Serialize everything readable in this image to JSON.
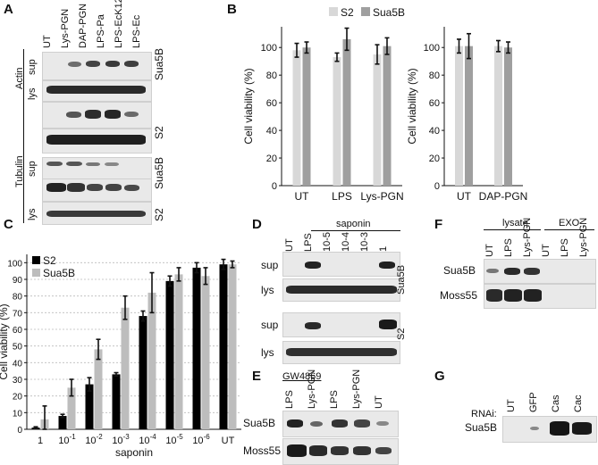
{
  "panels": {
    "A": {
      "label": "A",
      "lanes": [
        "UT",
        "Lys-PGN",
        "DAP-PGN",
        "LPS-Pa",
        "LPS-EcK12",
        "LPS-Ec"
      ],
      "groups": [
        "Actin",
        "Tubulin"
      ],
      "rows": [
        "sup",
        "lys",
        "sup",
        "lys"
      ],
      "side": [
        "Sua5B",
        "S2",
        "Sua5B",
        "S2"
      ]
    },
    "B": {
      "label": "B"
    },
    "C": {
      "label": "C"
    },
    "D": {
      "label": "D",
      "lanes": [
        "UT",
        "LPS",
        "10-5",
        "10-4",
        "10-3",
        "1"
      ],
      "header": "saponin",
      "rows": [
        "sup",
        "lys",
        "sup",
        "lys"
      ],
      "side": [
        "Sua5B",
        "S2"
      ]
    },
    "E": {
      "label": "E",
      "header": "GW4869",
      "lanes": [
        "LPS",
        "Lys-PGN",
        "LPS",
        "Lys-PGN",
        "UT"
      ],
      "rows": [
        "Sua5B",
        "Moss55"
      ]
    },
    "F": {
      "label": "F",
      "header_left": "lysate",
      "header_right": "EXO",
      "lanes": [
        "UT",
        "LPS",
        "Lys-PGN",
        "UT",
        "LPS",
        "Lys-PGN"
      ],
      "rows": [
        "Sua5B",
        "Moss55"
      ]
    },
    "G": {
      "label": "G",
      "rnai": "RNAi:",
      "lanes": [
        "UT",
        "GFP",
        "Cas",
        "Cac"
      ],
      "rows": [
        "Sua5B"
      ]
    }
  },
  "chart_data": [
    {
      "panel": "B-left",
      "type": "bar",
      "categories": [
        "UT",
        "LPS",
        "Lys-PGN"
      ],
      "series": [
        {
          "name": "S2",
          "values": [
            98,
            93,
            95
          ],
          "errors": [
            5,
            3,
            7
          ],
          "color": "#d8d8d8"
        },
        {
          "name": "Sua5B",
          "values": [
            100,
            106,
            101
          ],
          "errors": [
            4,
            8,
            6
          ],
          "color": "#9f9f9f"
        }
      ],
      "ylabel": "Cell viability (%)",
      "yticks": [
        "0",
        "20",
        "40",
        "60",
        "80",
        "100"
      ],
      "ylim": [
        0,
        115
      ],
      "legend": "top"
    },
    {
      "panel": "B-right",
      "type": "bar",
      "categories": [
        "UT",
        "DAP-PGN"
      ],
      "series": [
        {
          "name": "S2",
          "values": [
            101,
            101
          ],
          "errors": [
            5,
            4
          ]
        },
        {
          "name": "Sua5B",
          "values": [
            101,
            100
          ],
          "errors": [
            9,
            4
          ]
        }
      ],
      "ylabel": "Cell viability (%)",
      "yticks": [
        "0",
        "20",
        "40",
        "60",
        "80",
        "100"
      ],
      "ylim": [
        0,
        115
      ]
    },
    {
      "panel": "C",
      "type": "bar",
      "categories": [
        "1",
        "10-1",
        "10-2",
        "10-3",
        "10-4",
        "10-5",
        "10-6",
        "UT"
      ],
      "series": [
        {
          "name": "S2",
          "values": [
            1,
            8,
            27,
            33,
            68,
            89,
            97,
            99
          ],
          "errors": [
            0.5,
            1,
            4,
            1,
            3,
            3,
            3,
            3
          ],
          "color": "#000000"
        },
        {
          "name": "Sua5B",
          "values": [
            6,
            25,
            48,
            73,
            82,
            93,
            92,
            99
          ],
          "errors": [
            8,
            5,
            6,
            7,
            12,
            4,
            5,
            2
          ],
          "color": "#bdbdbd"
        }
      ],
      "xlabel": "saponin",
      "ylabel": "Cell viability (%)",
      "yticks": [
        "0",
        "10",
        "20",
        "30",
        "40",
        "50",
        "60",
        "70",
        "80",
        "90",
        "100"
      ],
      "ylim": [
        0,
        105
      ],
      "grid": true,
      "legend": "top-left"
    }
  ]
}
